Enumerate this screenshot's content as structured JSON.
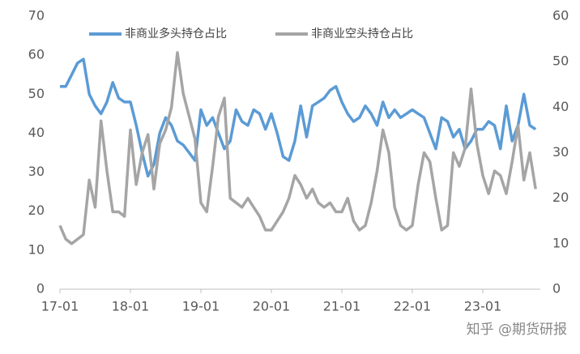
{
  "chart_data": {
    "type": "line",
    "categories": [
      "17-01",
      null,
      null,
      null,
      null,
      null,
      null,
      null,
      null,
      null,
      null,
      null,
      "18-01",
      null,
      null,
      null,
      null,
      null,
      null,
      null,
      null,
      null,
      null,
      null,
      "19-01",
      null,
      null,
      null,
      null,
      null,
      null,
      null,
      null,
      null,
      null,
      null,
      "20-01",
      null,
      null,
      null,
      null,
      null,
      null,
      null,
      null,
      null,
      null,
      null,
      "21-01",
      null,
      null,
      null,
      null,
      null,
      null,
      null,
      null,
      null,
      null,
      null,
      "22-01",
      null,
      null,
      null,
      null,
      null,
      null,
      null,
      null,
      null,
      null,
      null,
      "23-01",
      null,
      null,
      null,
      null,
      null,
      null,
      null,
      null,
      null
    ],
    "series": [
      {
        "name": "非商业多头持仓占比",
        "color": "#5b9bd5",
        "axis": "y",
        "values": [
          52,
          52,
          55,
          58,
          59,
          50,
          47,
          45,
          48,
          53,
          49,
          48,
          48,
          42,
          35,
          29,
          32,
          40,
          44,
          42,
          38,
          37,
          35,
          33,
          46,
          42,
          44,
          40,
          36,
          38,
          46,
          43,
          42,
          46,
          45,
          41,
          45,
          40,
          34,
          33,
          38,
          47,
          39,
          47,
          48,
          49,
          51,
          52,
          48,
          45,
          43,
          44,
          47,
          45,
          42,
          48,
          44,
          46,
          44,
          45,
          46,
          45,
          44,
          40,
          36,
          44,
          43,
          39,
          41,
          36,
          38,
          41,
          41,
          43,
          42,
          36,
          47,
          38,
          42,
          50,
          42,
          41
        ]
      },
      {
        "name": "非商业空头持仓占比",
        "color": "#a5a5a5",
        "axis": "y2",
        "values": [
          14,
          11,
          10,
          11,
          12,
          24,
          18,
          37,
          26,
          17,
          17,
          16,
          35,
          23,
          30,
          34,
          22,
          32,
          35,
          40,
          52,
          43,
          38,
          33,
          19,
          17,
          27,
          38,
          42,
          20,
          19,
          18,
          20,
          18,
          16,
          13,
          13,
          15,
          17,
          20,
          25,
          23,
          20,
          22,
          19,
          18,
          19,
          17,
          17,
          20,
          15,
          13,
          14,
          19,
          26,
          35,
          30,
          18,
          14,
          13,
          14,
          23,
          30,
          28,
          20,
          13,
          14,
          30,
          27,
          31,
          44,
          32,
          25,
          21,
          26,
          25,
          21,
          28,
          36,
          24,
          30,
          22
        ]
      }
    ],
    "ylim": [
      0,
      70
    ],
    "yticks": [
      0,
      10,
      20,
      30,
      40,
      50,
      60,
      70
    ],
    "y2lim": [
      0,
      60
    ],
    "y2ticks": [
      0,
      10,
      20,
      30,
      40,
      50,
      60
    ],
    "legend": "top",
    "watermark": "知乎 @期货研报"
  }
}
